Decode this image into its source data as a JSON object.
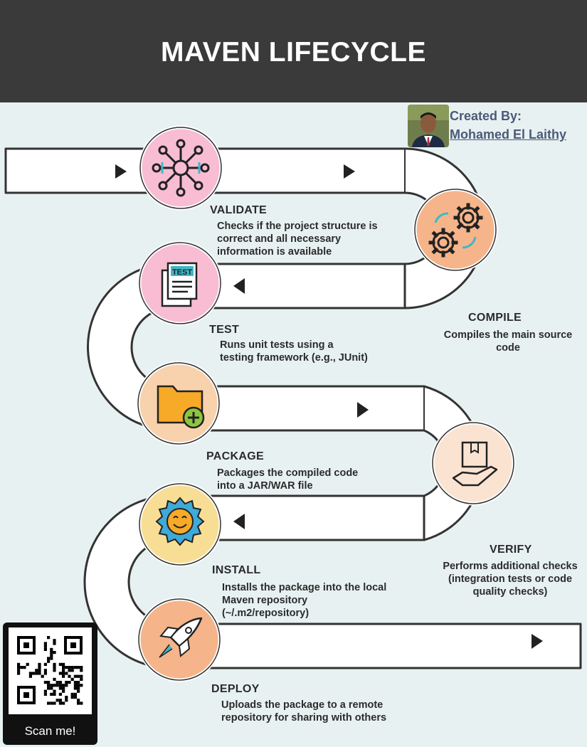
{
  "title": "MAVEN LIFECYCLE",
  "credit": {
    "label": "Created By:",
    "name": "Mohamed El Laithy"
  },
  "steps": [
    {
      "id": "validate",
      "title": "VALIDATE",
      "icon": "network-hub-icon",
      "color": "#f8bdd2",
      "description": [
        "Checks if the project structure is",
        "correct and all necessary",
        "information is available"
      ]
    },
    {
      "id": "compile",
      "title": "COMPILE",
      "icon": "gears-icon",
      "color": "#f6b48a",
      "description": [
        "Compiles the main source",
        "code"
      ]
    },
    {
      "id": "test",
      "title": "TEST",
      "icon": "test-document-icon",
      "color": "#f8bdd2",
      "description": [
        "Runs unit tests using a",
        "testing framework (e.g., JUnit)"
      ]
    },
    {
      "id": "package",
      "title": "PACKAGE",
      "icon": "folder-add-icon",
      "color": "#f8d2ad",
      "description": [
        "Packages the compiled code",
        "into a JAR/WAR file"
      ]
    },
    {
      "id": "verify",
      "title": "VERIFY",
      "icon": "package-hand-icon",
      "color": "#fbe3d2",
      "description": [
        "Performs additional checks",
        "(integration tests or code",
        "quality checks)"
      ]
    },
    {
      "id": "install",
      "title": "INSTALL",
      "icon": "smiling-gear-icon",
      "color": "#f8de95",
      "description": [
        "Installs the package into the local",
        "Maven repository",
        "(~/.m2/repository)"
      ]
    },
    {
      "id": "deploy",
      "title": "DEPLOY",
      "icon": "rocket-icon",
      "color": "#f6b48a",
      "description": [
        "Uploads the package to a remote",
        "repository for sharing with others"
      ]
    }
  ],
  "qr": {
    "label": "Scan me!"
  },
  "colors": {
    "header": "#3a3a3a",
    "background": "#e8f1f1",
    "road": "#ffffff",
    "road_outline": "#333333",
    "text": "#2b2b2b"
  }
}
